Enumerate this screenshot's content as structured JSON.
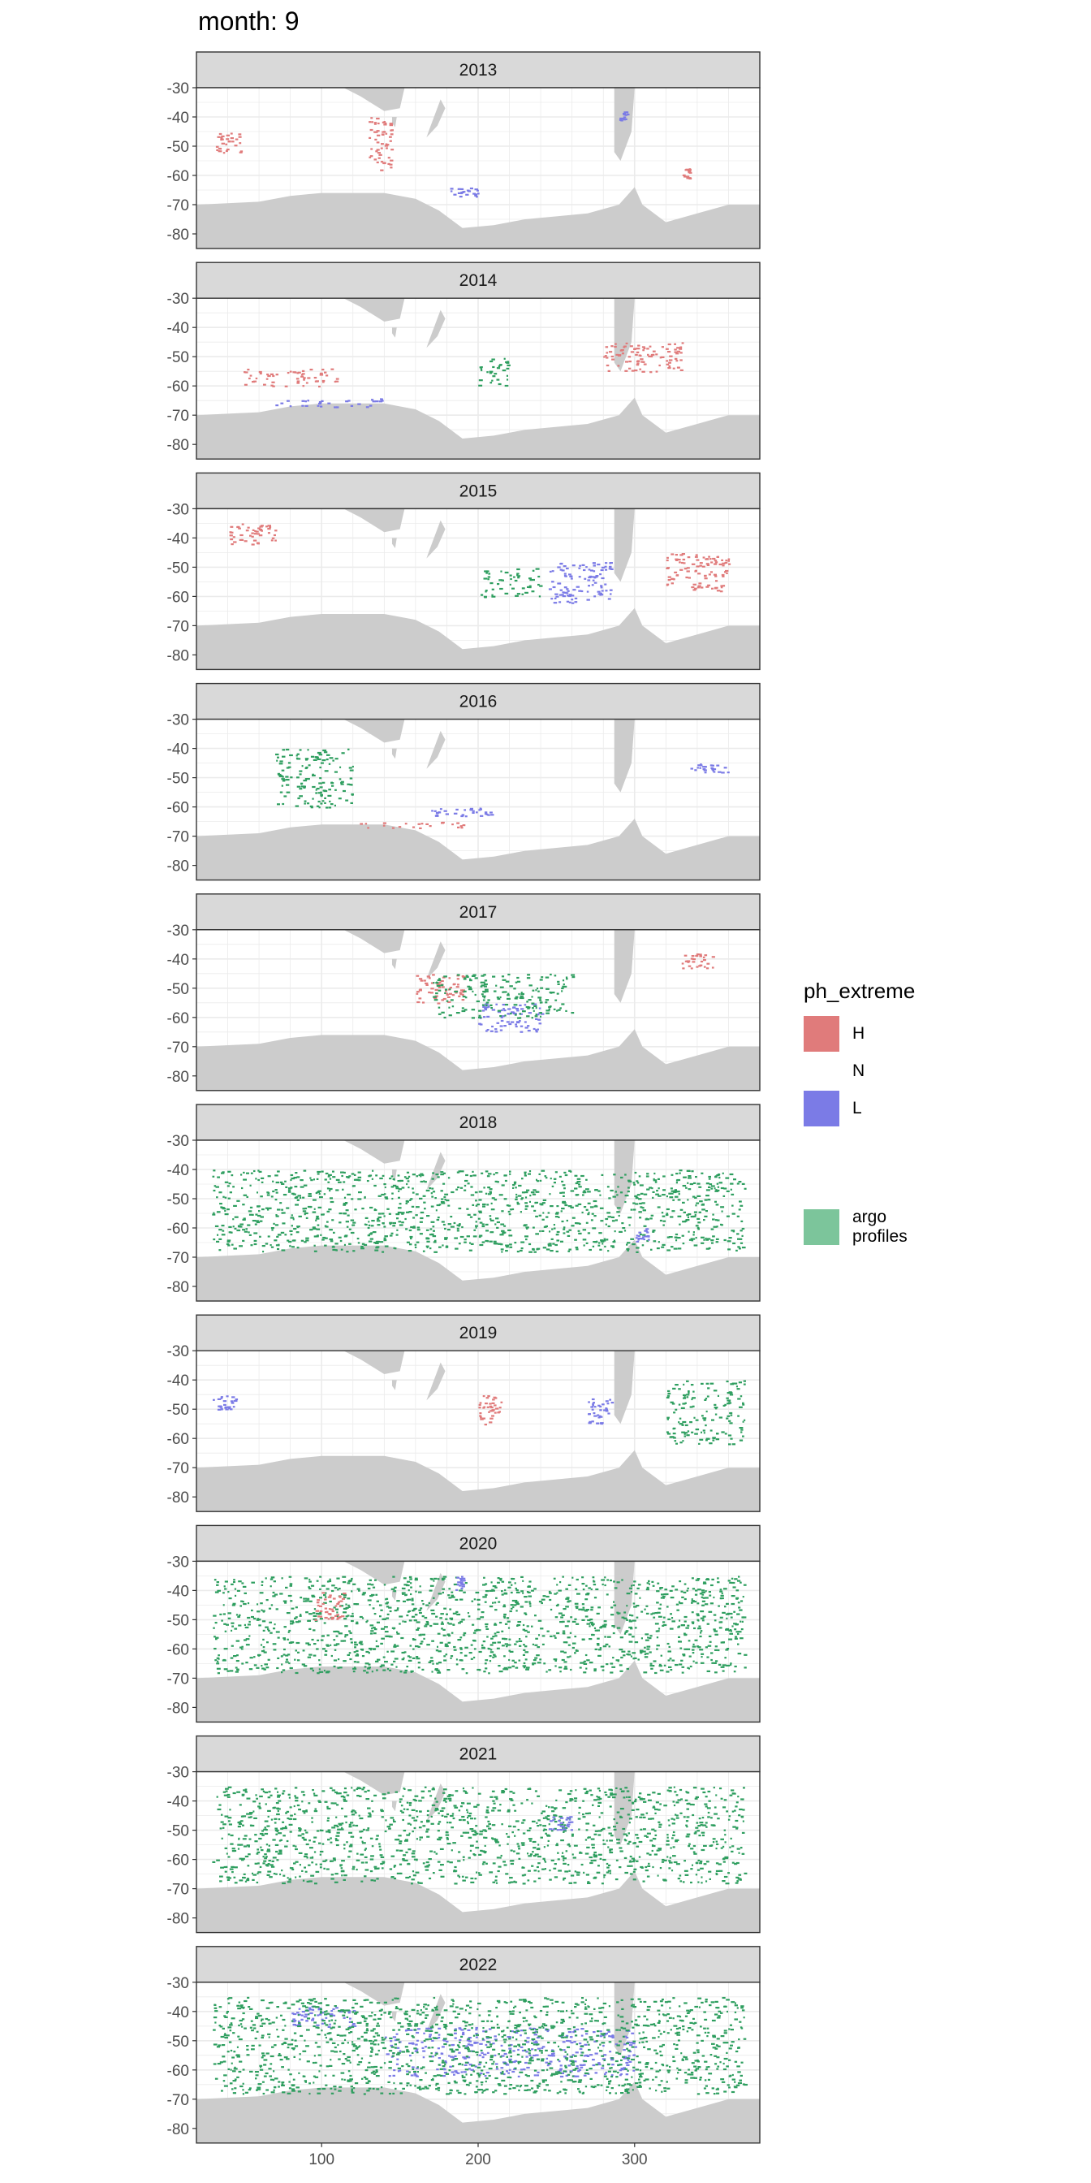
{
  "title": "month: 9",
  "legend": {
    "title": "ph_extreme",
    "items": [
      {
        "label": "H",
        "color": "#e07b7b"
      },
      {
        "label": "N",
        "color": null
      },
      {
        "label": "L",
        "color": "#7b7be6"
      }
    ],
    "argo": {
      "line1": "argo",
      "line2": "profiles",
      "color": "#7cc59b"
    }
  },
  "colors": {
    "land": "#cccccc",
    "strip": "#d9d9d9",
    "grid": "#ebebeb",
    "H": "#e07b7b",
    "L": "#7b7be6",
    "argo": "#2e9e5f"
  },
  "chart_data": {
    "type": "heatmap",
    "facet_by": "year",
    "facets": [
      "2013",
      "2014",
      "2015",
      "2016",
      "2017",
      "2018",
      "2019",
      "2020",
      "2021",
      "2022"
    ],
    "x_ticks": [
      100,
      200,
      300
    ],
    "y_ticks": [
      -30,
      -40,
      -50,
      -60,
      -70,
      -80
    ],
    "xlim": [
      20,
      380
    ],
    "ylim": [
      -85,
      -30
    ],
    "grid": true,
    "legend_position": "right",
    "series_categories": [
      "H",
      "N",
      "L",
      "argo profiles"
    ],
    "regions": {
      "2013": [
        {
          "cat": "H",
          "lon": [
            130,
            145
          ],
          "lat": [
            -40,
            -58
          ]
        },
        {
          "cat": "H",
          "lon": [
            32,
            48
          ],
          "lat": [
            -45,
            -52
          ]
        },
        {
          "cat": "L",
          "lon": [
            180,
            200
          ],
          "lat": [
            -64,
            -67
          ]
        },
        {
          "cat": "H",
          "lon": [
            330,
            335
          ],
          "lat": [
            -57,
            -61
          ]
        },
        {
          "cat": "L",
          "lon": [
            290,
            295
          ],
          "lat": [
            -38,
            -41
          ]
        }
      ],
      "2014": [
        {
          "cat": "H",
          "lon": [
            50,
            110
          ],
          "lat": [
            -54,
            -60
          ]
        },
        {
          "cat": "L",
          "lon": [
            70,
            140
          ],
          "lat": [
            -64,
            -67
          ]
        },
        {
          "cat": "argo profiles",
          "lon": [
            200,
            220
          ],
          "lat": [
            -50,
            -60
          ]
        },
        {
          "cat": "H",
          "lon": [
            280,
            330
          ],
          "lat": [
            -45,
            -55
          ]
        }
      ],
      "2015": [
        {
          "cat": "L",
          "lon": [
            245,
            285
          ],
          "lat": [
            -48,
            -62
          ]
        },
        {
          "cat": "H",
          "lon": [
            320,
            360
          ],
          "lat": [
            -45,
            -58
          ]
        },
        {
          "cat": "argo profiles",
          "lon": [
            200,
            240
          ],
          "lat": [
            -50,
            -60
          ]
        },
        {
          "cat": "H",
          "lon": [
            40,
            70
          ],
          "lat": [
            -35,
            -42
          ]
        }
      ],
      "2016": [
        {
          "cat": "argo profiles",
          "lon": [
            70,
            120
          ],
          "lat": [
            -40,
            -60
          ]
        },
        {
          "cat": "L",
          "lon": [
            170,
            210
          ],
          "lat": [
            -60,
            -63
          ]
        },
        {
          "cat": "L",
          "lon": [
            335,
            360
          ],
          "lat": [
            -45,
            -48
          ]
        },
        {
          "cat": "H",
          "lon": [
            120,
            190
          ],
          "lat": [
            -65,
            -67
          ]
        }
      ],
      "2017": [
        {
          "cat": "H",
          "lon": [
            160,
            190
          ],
          "lat": [
            -45,
            -55
          ]
        },
        {
          "cat": "L",
          "lon": [
            200,
            240
          ],
          "lat": [
            -55,
            -65
          ]
        },
        {
          "cat": "argo profiles",
          "lon": [
            170,
            260
          ],
          "lat": [
            -45,
            -60
          ]
        },
        {
          "cat": "H",
          "lon": [
            330,
            350
          ],
          "lat": [
            -38,
            -43
          ]
        }
      ],
      "2018": [
        {
          "cat": "argo profiles",
          "lon": [
            30,
            370
          ],
          "lat": [
            -40,
            -68
          ]
        },
        {
          "cat": "L",
          "lon": [
            300,
            310
          ],
          "lat": [
            -60,
            -65
          ]
        }
      ],
      "2019": [
        {
          "cat": "H",
          "lon": [
            200,
            215
          ],
          "lat": [
            -45,
            -55
          ]
        },
        {
          "cat": "L",
          "lon": [
            270,
            285
          ],
          "lat": [
            -45,
            -55
          ]
        },
        {
          "cat": "argo profiles",
          "lon": [
            320,
            370
          ],
          "lat": [
            -40,
            -62
          ]
        },
        {
          "cat": "L",
          "lon": [
            30,
            45
          ],
          "lat": [
            -45,
            -50
          ]
        }
      ],
      "2020": [
        {
          "cat": "argo profiles",
          "lon": [
            30,
            370
          ],
          "lat": [
            -35,
            -68
          ]
        },
        {
          "cat": "H",
          "lon": [
            95,
            115
          ],
          "lat": [
            -40,
            -50
          ]
        },
        {
          "cat": "L",
          "lon": [
            185,
            190
          ],
          "lat": [
            -35,
            -40
          ]
        }
      ],
      "2021": [
        {
          "cat": "argo profiles",
          "lon": [
            30,
            370
          ],
          "lat": [
            -35,
            -68
          ]
        },
        {
          "cat": "L",
          "lon": [
            245,
            260
          ],
          "lat": [
            -45,
            -50
          ]
        }
      ],
      "2022": [
        {
          "cat": "L",
          "lon": [
            140,
            300
          ],
          "lat": [
            -45,
            -62
          ]
        },
        {
          "cat": "L",
          "lon": [
            80,
            120
          ],
          "lat": [
            -38,
            -45
          ]
        },
        {
          "cat": "argo profiles",
          "lon": [
            30,
            370
          ],
          "lat": [
            -35,
            -68
          ]
        }
      ]
    }
  }
}
